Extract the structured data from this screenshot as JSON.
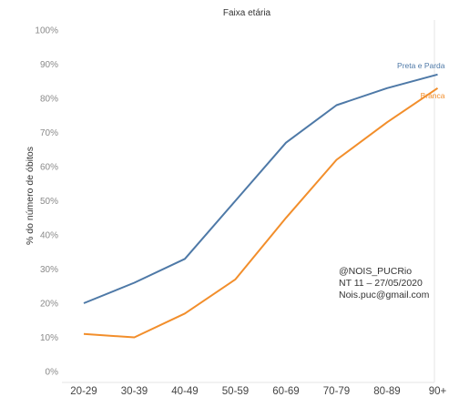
{
  "chart_data": {
    "type": "line",
    "title": "Faixa etária",
    "xlabel": "",
    "ylabel": "% do número de óbitos",
    "categories": [
      "20-29",
      "30-39",
      "40-49",
      "50-59",
      "60-69",
      "70-79",
      "80-89",
      "90+"
    ],
    "ylim": [
      0,
      100
    ],
    "yticks": [
      "0%",
      "10%",
      "20%",
      "30%",
      "40%",
      "50%",
      "60%",
      "70%",
      "80%",
      "90%",
      "100%"
    ],
    "grid": false,
    "series": [
      {
        "name": "Preta e Parda",
        "color": "#4e79a7",
        "values": [
          20,
          26,
          33,
          50,
          67,
          78,
          83,
          87
        ]
      },
      {
        "name": "Branca",
        "color": "#f28e2b",
        "values": [
          11,
          10,
          17,
          27,
          45,
          62,
          73,
          83
        ]
      }
    ]
  },
  "annotation": {
    "lines": [
      "@NOIS_PUCRio",
      "NT 11 – 27/05/2020",
      "Nois.puc@gmail.com"
    ]
  }
}
